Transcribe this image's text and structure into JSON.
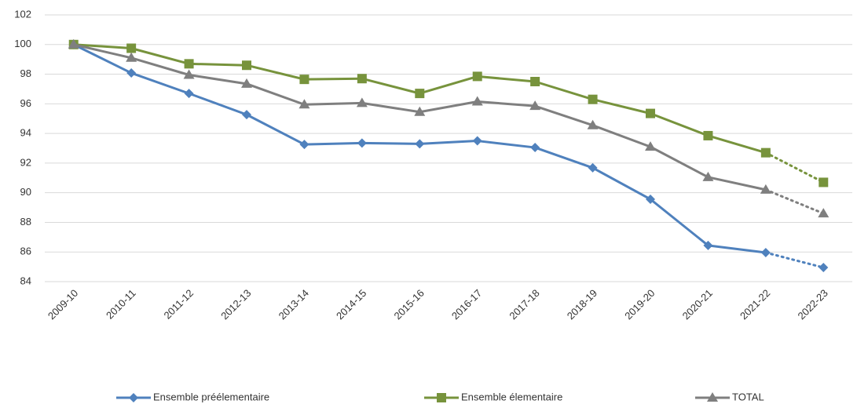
{
  "chart_data": {
    "type": "line",
    "categories": [
      "2009-10",
      "2010-11",
      "2011-12",
      "2012-13",
      "2013-14",
      "2014-15",
      "2015-16",
      "2016-17",
      "2017-18",
      "2018-19",
      "2019-20",
      "2020-21",
      "2021-22",
      "2022-23"
    ],
    "series": [
      {
        "name": "Ensemble préélementaire",
        "color": "#4f81bd",
        "marker": "diamond",
        "values": [
          100,
          98.08,
          96.7,
          95.27,
          93.26,
          93.35,
          93.3,
          93.5,
          93.05,
          91.68,
          89.56,
          86.44,
          85.96,
          84.95
        ]
      },
      {
        "name": "Ensemble élementaire",
        "color": "#77933c",
        "marker": "square",
        "values": [
          100,
          99.75,
          98.7,
          98.6,
          97.65,
          97.7,
          96.7,
          97.85,
          97.5,
          96.3,
          95.35,
          93.85,
          92.7,
          90.7
        ]
      },
      {
        "name": "TOTAL",
        "color": "#7f7f7f",
        "marker": "triangle",
        "values": [
          100,
          99.1,
          97.95,
          97.35,
          95.95,
          96.05,
          95.45,
          96.15,
          95.85,
          94.55,
          93.1,
          91.05,
          90.2,
          88.6
        ]
      }
    ],
    "ylim": [
      84,
      102
    ],
    "yticks": [
      84,
      86,
      88,
      90,
      92,
      94,
      96,
      98,
      100,
      102
    ],
    "grid": true,
    "legend": "bottom"
  }
}
